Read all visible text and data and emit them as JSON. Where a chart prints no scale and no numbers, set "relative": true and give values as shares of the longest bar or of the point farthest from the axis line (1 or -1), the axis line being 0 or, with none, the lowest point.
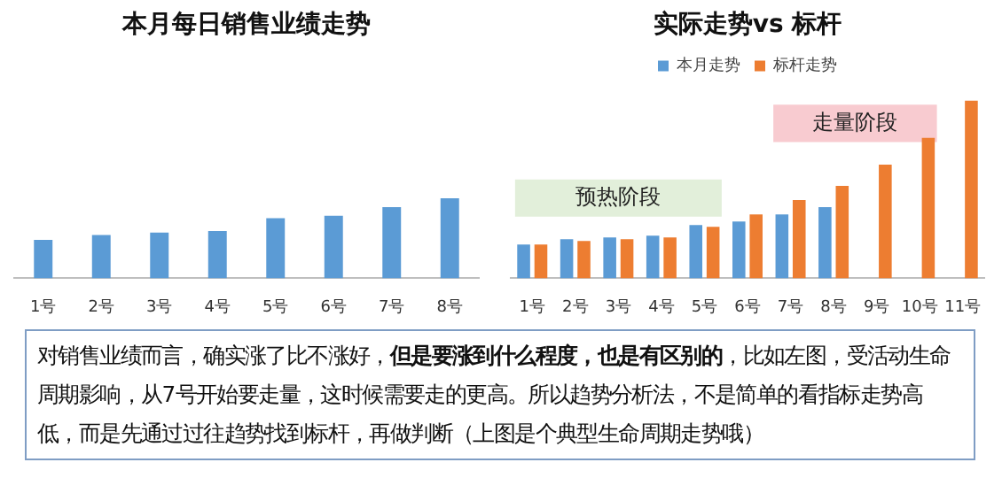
{
  "chart_data": [
    {
      "type": "bar",
      "title": "本月每日销售业绩走势",
      "relative": true,
      "categories": [
        "1号",
        "2号",
        "3号",
        "4号",
        "5号",
        "6号",
        "7号",
        "8号"
      ],
      "values": [
        0.48,
        0.54,
        0.57,
        0.59,
        0.75,
        0.78,
        0.89,
        1
      ],
      "color": "#5b9bd5",
      "grid": false,
      "legend": false
    },
    {
      "type": "bar",
      "title": "实际走势vs 标杆",
      "relative": true,
      "categories": [
        "1号",
        "2号",
        "3号",
        "4号",
        "5号",
        "6号",
        "7号",
        "8号",
        "9号",
        "10号",
        "11号"
      ],
      "series": [
        {
          "name": "本月走势",
          "color": "#5b9bd5",
          "values": [
            0.19,
            0.22,
            0.23,
            0.24,
            0.3,
            0.32,
            0.36,
            0.4,
            null,
            null,
            null
          ]
        },
        {
          "name": "标杆走势",
          "color": "#ed7d31",
          "values": [
            0.19,
            0.21,
            0.22,
            0.23,
            0.29,
            0.36,
            0.44,
            0.52,
            0.64,
            0.79,
            1
          ]
        }
      ],
      "bands": [
        {
          "axis": "x",
          "from": "1号",
          "to": "5号",
          "label": "预热阶段",
          "color": "#e2efda"
        },
        {
          "axis": "x",
          "from": "7号",
          "to": "10号",
          "label": "走量阶段",
          "color": "#f8cbd0"
        }
      ],
      "grid": false,
      "legend": "top",
      "annotations": [
        "对销售业绩而言，确实涨了比不涨好，",
        "但是要涨到什么程度，也是有区别的",
        "，比如左图，受活动生命周期影响，从7号开始要走量，这时候需要走的更高。所以趋势分析法，不是简单的看指标走势高低，而是先通过过往趋势找到标杆，再做判断（上图是个典型生命周期走势哦）"
      ]
    }
  ]
}
